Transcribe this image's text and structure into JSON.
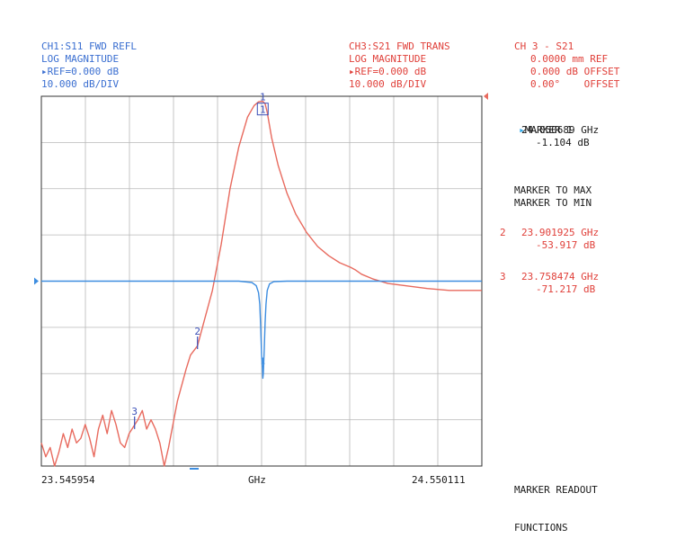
{
  "colors": {
    "ch1": "#3d8de0",
    "ch3": "#e86a5e",
    "ch1_text": "#3b6fd1",
    "ch3_text": "#e0403a",
    "grid": "#b8b8b8",
    "frame": "#333333"
  },
  "header": {
    "ch1": {
      "title": "CH1:S11 FWD REFL",
      "format": "LOG MAGNITUDE",
      "ref": "▸REF=0.000 dB",
      "scale": "10.000 dB/DIV"
    },
    "ch3": {
      "title": "CH3:S21 FWD TRANS",
      "format": "LOG MAGNITUDE",
      "ref": "▸REF=0.000 dB",
      "scale": "10.000 dB/DIV"
    },
    "offsets": {
      "title": "CH 3 - S21",
      "line1": "0.0000 mm REF",
      "line2": "0.000 dB OFFSET",
      "line3": "0.00°    OFFSET"
    }
  },
  "menu": {
    "marker1_title": "MARKER 1",
    "marker1_freq": "24.050689 GHz",
    "marker1_val": "-1.104 dB",
    "to_max": "MARKER TO MAX",
    "to_min": "MARKER TO MIN",
    "marker2_num": "2",
    "marker2_freq": "23.901925 GHz",
    "marker2_val": "-53.917 dB",
    "marker3_num": "3",
    "marker3_freq": "23.758474 GHz",
    "marker3_val": "-71.217 dB",
    "readout_line1": "MARKER READOUT",
    "readout_line2": "FUNCTIONS"
  },
  "axis": {
    "start": "23.545954",
    "unit": "GHz",
    "stop": "24.550111"
  },
  "chart_data": {
    "type": "line",
    "x_unit": "GHz",
    "xlim": [
      23.545954,
      24.550111
    ],
    "ylim": [
      -80,
      0
    ],
    "y_ref": 0,
    "y_scale_db_per_div": 10,
    "grid": true,
    "series": [
      {
        "name": "CH3:S21 FWD TRANS",
        "color": "#e86a5e",
        "x": [
          23.546,
          23.556,
          23.566,
          23.576,
          23.586,
          23.596,
          23.606,
          23.616,
          23.626,
          23.636,
          23.646,
          23.656,
          23.666,
          23.676,
          23.686,
          23.696,
          23.706,
          23.716,
          23.726,
          23.736,
          23.746,
          23.756,
          23.766,
          23.776,
          23.786,
          23.796,
          23.806,
          23.816,
          23.826,
          23.836,
          23.856,
          23.876,
          23.886,
          23.902,
          23.916,
          23.936,
          23.956,
          23.976,
          23.996,
          24.016,
          24.031,
          24.041,
          24.046,
          24.051,
          24.056,
          24.061,
          24.071,
          24.086,
          24.106,
          24.126,
          24.151,
          24.176,
          24.201,
          24.226,
          24.251,
          24.261,
          24.276,
          24.301,
          24.336,
          24.376,
          24.426,
          24.476,
          24.526,
          24.55
        ],
        "y": [
          -75,
          -78,
          -76,
          -80,
          -77,
          -73,
          -76,
          -72,
          -75,
          -74,
          -71,
          -74,
          -78,
          -72,
          -69,
          -73,
          -68,
          -71,
          -75,
          -76,
          -73,
          -71.5,
          -70,
          -68,
          -72,
          -70,
          -72,
          -75,
          -80,
          -76,
          -66,
          -59,
          -56,
          -54,
          -49,
          -42,
          -32,
          -20,
          -11,
          -4.5,
          -2,
          -1.2,
          -1.1,
          -1.1,
          -1.6,
          -3.5,
          -9,
          -15,
          -21,
          -25.5,
          -29.5,
          -32.5,
          -34.5,
          -36,
          -37,
          -37.5,
          -38.5,
          -39.5,
          -40.5,
          -41,
          -41.6,
          -42,
          -42,
          -42
        ]
      },
      {
        "name": "CH1:S11 FWD REFL",
        "color": "#3d8de0",
        "x": [
          23.546,
          23.996,
          24.026,
          24.036,
          24.041,
          24.044,
          24.046,
          24.048,
          24.05,
          24.051,
          24.052,
          24.054,
          24.056,
          24.058,
          24.061,
          24.066,
          24.076,
          24.106,
          24.55
        ],
        "y": [
          -40,
          -40,
          -40.3,
          -41,
          -42.5,
          -45,
          -50,
          -56,
          -59,
          -61,
          -60,
          -55,
          -49,
          -45,
          -42,
          -40.6,
          -40.1,
          -40,
          -40
        ]
      }
    ],
    "markers": [
      {
        "label": "1",
        "channel": "CH3",
        "x": 24.050689,
        "y": -1.104
      },
      {
        "label": "2",
        "channel": "CH3",
        "x": 23.901925,
        "y": -53.917
      },
      {
        "label": "3",
        "channel": "CH3",
        "x": 23.758474,
        "y": -71.217
      },
      {
        "label": "1",
        "channel": "CH1",
        "x": 24.050689,
        "y": -61
      }
    ]
  }
}
